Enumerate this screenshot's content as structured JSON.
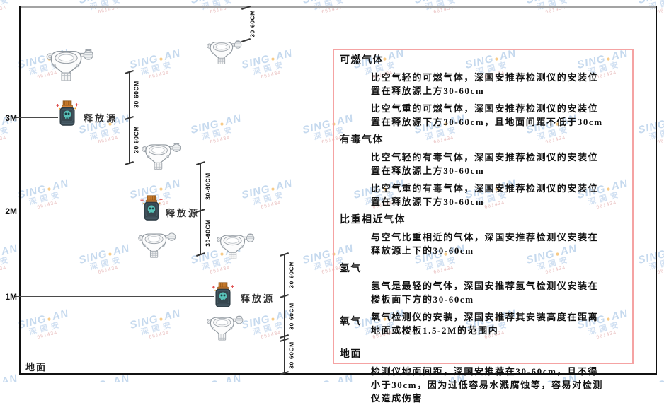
{
  "diagram": {
    "height_labels": [
      "3M",
      "2M",
      "1M"
    ],
    "ground_label": "地面",
    "release_source_label": "释放源",
    "dim_label": "30-60CM"
  },
  "panel": {
    "sections": [
      {
        "heading": "可燃气体",
        "inline": false,
        "paragraphs": [
          "比空气轻的可燃气体，深国安推荐检测仪的安装位置在释放源上方30-60cm",
          "比空气重的可燃气体，深国安推荐检测仪的安装位置在释放源下方30-60cm，且地面间距不低于30cm"
        ]
      },
      {
        "heading": "有毒气体",
        "inline": false,
        "paragraphs": [
          "比空气轻的有毒气体，深国安推荐检测仪的安装位置在释放源上方30-60cm",
          "比空气重的有毒气体，深国安推荐检测仪的安装位置在释放源下方30-60cm"
        ]
      },
      {
        "heading": "比重相近气体",
        "inline": false,
        "paragraphs": [
          "与空气比重相近的气体，深国安推荐检测仪安装在释放源上下的30-60cm"
        ]
      },
      {
        "heading": "氢气",
        "inline": false,
        "paragraphs": [
          "氢气是最轻的气体，深国安推荐氢气检测仪安装在楼板面下方的30-60cm"
        ]
      },
      {
        "heading": "氧气",
        "inline": true,
        "paragraphs": [
          "氧气检测仪的安装，深国安推荐其安装高度在距离地面或楼板1.5-2M的范围内"
        ]
      },
      {
        "heading": "地面",
        "inline": false,
        "paragraphs": [
          "检测仪地面间距，深国安推荐在30-60cm，且不得小于30cm，因为过低容易水溅腐蚀等，容易对检测仪造成伤害"
        ]
      }
    ]
  },
  "watermark": {
    "brand_left": "SING",
    "brand_right": "AN",
    "dot": "●",
    "cn": "深国安",
    "red": "661434"
  },
  "colors": {
    "panel_border": "#f5a3a3",
    "bottle_body": "#37474f",
    "bottle_cap": "#c6792b",
    "skull": "#59c2b8",
    "sparkle": "#e05252",
    "watermark_blue": "#9fc0e4",
    "watermark_dot": "#f2aa3c"
  }
}
